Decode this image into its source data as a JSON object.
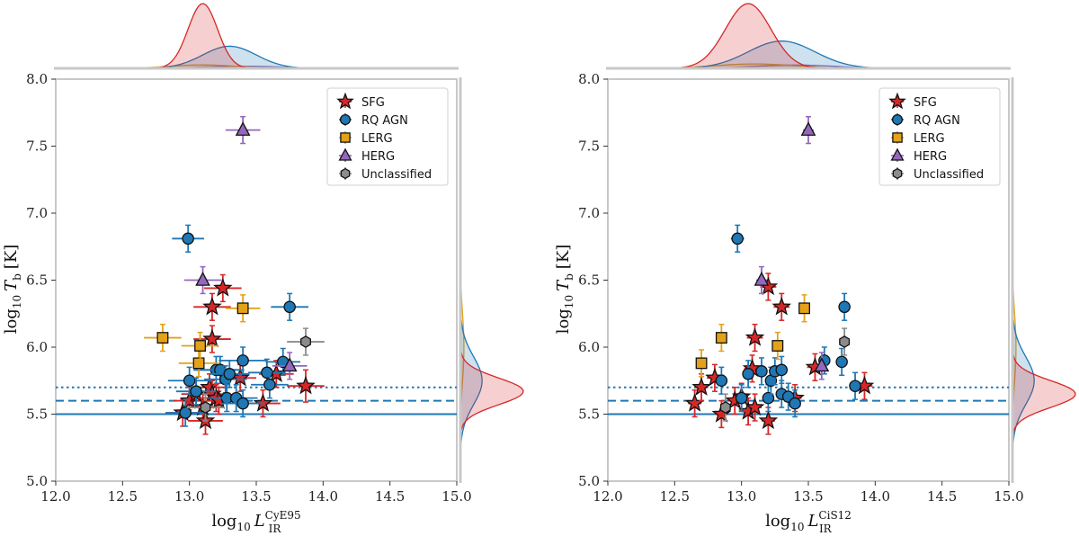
{
  "chart_data": [
    {
      "type": "scatter",
      "title": "",
      "xlabel": {
        "prefix": "log",
        "sub": "10",
        "var": "L",
        "var_sub": "IR",
        "var_sup": "CyE95"
      },
      "ylabel": {
        "prefix": "log",
        "sub": "10",
        "var": "T",
        "var_sub": "b",
        "unit": "[K]"
      },
      "xlim": [
        12.0,
        15.0
      ],
      "ylim": [
        5.0,
        8.0
      ],
      "xticks": [
        "12.0",
        "12.5",
        "13.0",
        "13.5",
        "14.0",
        "14.5",
        "15.0"
      ],
      "yticks": [
        "5.0",
        "5.5",
        "6.0",
        "6.5",
        "7.0",
        "7.5",
        "8.0"
      ],
      "hlines": [
        {
          "y": 5.5,
          "style": "solid",
          "color": "#1f77b4"
        },
        {
          "y": 5.6,
          "style": "dashed",
          "color": "#1f77b4"
        },
        {
          "y": 5.7,
          "style": "dotted",
          "color": "#1f77b4"
        }
      ],
      "legend": {
        "loc": "upper-right",
        "entries": [
          "SFG",
          "RQ AGN",
          "LERG",
          "HERG",
          "Unclassified"
        ]
      },
      "series": [
        {
          "name": "SFG",
          "marker": "star",
          "color": "#d62728",
          "points": [
            [
              12.95,
              5.51,
              0.12,
              0.04
            ],
            [
              13.0,
              5.6,
              0.12,
              0.03
            ],
            [
              13.05,
              5.65,
              0.11,
              0.04
            ],
            [
              13.1,
              5.55,
              0.12,
              0.05
            ],
            [
              13.12,
              5.45,
              0.13,
              0.04
            ],
            [
              13.15,
              5.7,
              0.13,
              0.05
            ],
            [
              13.17,
              5.65,
              0.12,
              0.04
            ],
            [
              13.2,
              5.62,
              0.12,
              0.05
            ],
            [
              13.22,
              5.6,
              0.13,
              0.04
            ],
            [
              13.17,
              6.06,
              0.14,
              0.03
            ],
            [
              13.17,
              6.3,
              0.14,
              0.03
            ],
            [
              13.25,
              6.44,
              0.14,
              0.05
            ],
            [
              13.38,
              5.77,
              0.12,
              0.05
            ],
            [
              13.55,
              5.58,
              0.13,
              0.06
            ],
            [
              13.65,
              5.8,
              0.13,
              0.07
            ],
            [
              13.87,
              5.71,
              0.14,
              0.12
            ]
          ]
        },
        {
          "name": "RQ AGN",
          "marker": "circle",
          "color": "#1f77b4",
          "points": [
            [
              12.97,
              5.51,
              0.15,
              0.02
            ],
            [
              12.99,
              6.81,
              0.12,
              0.02
            ],
            [
              13.0,
              5.75,
              0.16,
              0.03
            ],
            [
              13.05,
              5.67,
              0.15,
              0.05
            ],
            [
              13.2,
              5.83,
              0.17,
              0.04
            ],
            [
              13.23,
              5.83,
              0.18,
              0.05
            ],
            [
              13.27,
              5.76,
              0.16,
              0.05
            ],
            [
              13.28,
              5.62,
              0.14,
              0.04
            ],
            [
              13.3,
              5.8,
              0.15,
              0.05
            ],
            [
              13.35,
              5.62,
              0.16,
              0.05
            ],
            [
              13.4,
              5.58,
              0.16,
              0.05
            ],
            [
              13.4,
              5.9,
              0.18,
              0.04
            ],
            [
              13.58,
              5.81,
              0.14,
              0.05
            ],
            [
              13.6,
              5.72,
              0.14,
              0.05
            ],
            [
              13.7,
              5.89,
              0.13,
              0.04
            ],
            [
              13.75,
              6.3,
              0.14,
              0.05
            ]
          ]
        },
        {
          "name": "LERG",
          "marker": "square",
          "color": "#e3a21a",
          "points": [
            [
              12.8,
              6.07,
              0.14,
              0.02
            ],
            [
              13.07,
              5.88,
              0.15,
              0.02
            ],
            [
              13.08,
              6.01,
              0.14,
              0.02
            ],
            [
              13.4,
              6.29,
              0.13,
              0.02
            ]
          ]
        },
        {
          "name": "HERG",
          "marker": "triangle",
          "color": "#9467bd",
          "points": [
            [
              13.1,
              6.5,
              0.14,
              0.03
            ],
            [
              13.4,
              7.62,
              0.13,
              0.02
            ],
            [
              13.75,
              5.86,
              0.13,
              0.1
            ]
          ]
        },
        {
          "name": "Unclassified",
          "marker": "hexagon",
          "color": "#8c8c8c",
          "points": [
            [
              13.12,
              5.55,
              0.14,
              0.04
            ],
            [
              13.87,
              6.04,
              0.14,
              0.02
            ]
          ]
        }
      ],
      "marginal_top": [
        {
          "name": "SFG",
          "mean": 13.1,
          "sd": 0.11
        },
        {
          "name": "RQ AGN",
          "mean": 13.3,
          "sd": 0.2
        },
        {
          "name": "LERG",
          "mean": 13.1,
          "sd": 0.25
        },
        {
          "name": "HERG",
          "mean": 13.4,
          "sd": 0.3
        }
      ],
      "marginal_right": [
        {
          "name": "SFG",
          "mean": 5.67,
          "sd": 0.1
        },
        {
          "name": "RQ AGN",
          "mean": 5.75,
          "sd": 0.18
        },
        {
          "name": "LERG",
          "mean": 6.0,
          "sd": 0.25
        },
        {
          "name": "HERG",
          "mean": 6.5,
          "sd": 0.6
        }
      ]
    },
    {
      "type": "scatter",
      "title": "",
      "xlabel": {
        "prefix": "log",
        "sub": "10",
        "var": "L",
        "var_sub": "IR",
        "var_sup": "CiS12"
      },
      "ylabel": {
        "prefix": "log",
        "sub": "10",
        "var": "T",
        "var_sub": "b",
        "unit": "[K]"
      },
      "xlim": [
        12.0,
        15.0
      ],
      "ylim": [
        5.0,
        8.0
      ],
      "xticks": [
        "12.0",
        "12.5",
        "13.0",
        "13.5",
        "14.0",
        "14.5",
        "15.0"
      ],
      "yticks": [
        "5.0",
        "5.5",
        "6.0",
        "6.5",
        "7.0",
        "7.5",
        "8.0"
      ],
      "hlines": [
        {
          "y": 5.5,
          "style": "solid",
          "color": "#1f77b4"
        },
        {
          "y": 5.6,
          "style": "dashed",
          "color": "#1f77b4"
        },
        {
          "y": 5.7,
          "style": "dotted",
          "color": "#1f77b4"
        }
      ],
      "legend": {
        "loc": "upper-right",
        "entries": [
          "SFG",
          "RQ AGN",
          "LERG",
          "HERG",
          "Unclassified"
        ]
      },
      "series": [
        {
          "name": "SFG",
          "marker": "star",
          "color": "#d62728",
          "points": [
            [
              12.65,
              5.58,
              0.05,
              0.04
            ],
            [
              12.7,
              5.7,
              0.05,
              0.04
            ],
            [
              12.8,
              5.77,
              0.06,
              0.05
            ],
            [
              12.85,
              5.5,
              0.05,
              0.05
            ],
            [
              12.95,
              5.6,
              0.05,
              0.05
            ],
            [
              13.0,
              5.63,
              0.05,
              0.05
            ],
            [
              13.05,
              5.52,
              0.05,
              0.05
            ],
            [
              13.08,
              5.84,
              0.06,
              0.05
            ],
            [
              13.1,
              5.55,
              0.05,
              0.05
            ],
            [
              13.1,
              6.07,
              0.06,
              0.04
            ],
            [
              13.2,
              5.45,
              0.05,
              0.05
            ],
            [
              13.2,
              6.45,
              0.06,
              0.04
            ],
            [
              13.3,
              6.3,
              0.06,
              0.04
            ],
            [
              13.4,
              5.62,
              0.05,
              0.05
            ],
            [
              13.55,
              5.85,
              0.06,
              0.05
            ],
            [
              13.92,
              5.71,
              0.06,
              0.05
            ]
          ]
        },
        {
          "name": "RQ AGN",
          "marker": "circle",
          "color": "#1f77b4",
          "points": [
            [
              12.85,
              5.75,
              0.03,
              0.02
            ],
            [
              12.97,
              6.81,
              0.05,
              0.02
            ],
            [
              13.0,
              5.62,
              0.04,
              0.03
            ],
            [
              13.05,
              5.8,
              0.04,
              0.04
            ],
            [
              13.15,
              5.82,
              0.04,
              0.05
            ],
            [
              13.2,
              5.62,
              0.04,
              0.04
            ],
            [
              13.22,
              5.75,
              0.04,
              0.05
            ],
            [
              13.25,
              5.82,
              0.04,
              0.05
            ],
            [
              13.3,
              5.83,
              0.04,
              0.05
            ],
            [
              13.3,
              5.65,
              0.04,
              0.04
            ],
            [
              13.35,
              5.63,
              0.04,
              0.05
            ],
            [
              13.4,
              5.58,
              0.04,
              0.05
            ],
            [
              13.62,
              5.9,
              0.04,
              0.04
            ],
            [
              13.75,
              5.89,
              0.04,
              0.05
            ],
            [
              13.77,
              6.3,
              0.04,
              0.05
            ],
            [
              13.85,
              5.71,
              0.04,
              0.05
            ]
          ]
        },
        {
          "name": "LERG",
          "marker": "square",
          "color": "#e3a21a",
          "points": [
            [
              12.7,
              5.88,
              0.03,
              0.02
            ],
            [
              12.85,
              6.07,
              0.03,
              0.02
            ],
            [
              13.27,
              6.01,
              0.03,
              0.02
            ],
            [
              13.47,
              6.29,
              0.03,
              0.02
            ]
          ]
        },
        {
          "name": "HERG",
          "marker": "triangle",
          "color": "#9467bd",
          "points": [
            [
              13.15,
              6.5,
              0.04,
              0.03
            ],
            [
              13.5,
              7.62,
              0.04,
              0.02
            ],
            [
              13.6,
              5.86,
              0.04,
              0.08
            ]
          ]
        },
        {
          "name": "Unclassified",
          "marker": "hexagon",
          "color": "#8c8c8c",
          "points": [
            [
              12.88,
              5.55,
              0.04,
              0.04
            ],
            [
              13.77,
              6.04,
              0.04,
              0.02
            ]
          ]
        }
      ],
      "marginal_top": [
        {
          "name": "SFG",
          "mean": 13.05,
          "sd": 0.17
        },
        {
          "name": "RQ AGN",
          "mean": 13.3,
          "sd": 0.25
        },
        {
          "name": "LERG",
          "mean": 13.1,
          "sd": 0.3
        },
        {
          "name": "HERG",
          "mean": 13.4,
          "sd": 0.3
        }
      ],
      "marginal_right": [
        {
          "name": "SFG",
          "mean": 5.65,
          "sd": 0.1
        },
        {
          "name": "RQ AGN",
          "mean": 5.75,
          "sd": 0.18
        },
        {
          "name": "LERG",
          "mean": 6.0,
          "sd": 0.25
        },
        {
          "name": "HERG",
          "mean": 6.5,
          "sd": 0.6
        }
      ]
    }
  ]
}
